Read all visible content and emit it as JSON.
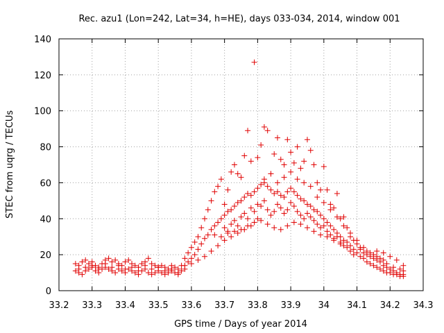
{
  "chart_data": {
    "type": "scatter",
    "title": "Rec. azu1 (Lon=242, Lat=34, h=HE), days 033-034, 2014, window 001",
    "xlabel": "GPS time / Days of year 2014",
    "ylabel": "STEC from uqrg / TECUs",
    "xlim": [
      33.2,
      34.3
    ],
    "ylim": [
      0,
      140
    ],
    "xticks": [
      33.2,
      33.3,
      33.4,
      33.5,
      33.6,
      33.7,
      33.8,
      33.9,
      34.0,
      34.1,
      34.2,
      34.3
    ],
    "xtick_labels": [
      "33.2",
      "33.3",
      "33.4",
      "33.5",
      "33.6",
      "33.7",
      "33.8",
      "33.9",
      "34",
      "34.1",
      "34.2",
      "34.3"
    ],
    "yticks": [
      0,
      20,
      40,
      60,
      80,
      100,
      120,
      140
    ],
    "ytick_labels": [
      "0",
      "20",
      "40",
      "60",
      "80",
      "100",
      "120",
      "140"
    ],
    "grid": true,
    "marker": "plus",
    "color": "#e00000",
    "series": [
      {
        "name": "STEC",
        "points": [
          [
            33.25,
            15
          ],
          [
            33.26,
            14
          ],
          [
            33.27,
            16
          ],
          [
            33.28,
            17
          ],
          [
            33.29,
            15
          ],
          [
            33.3,
            16
          ],
          [
            33.31,
            14
          ],
          [
            33.32,
            13
          ],
          [
            33.33,
            15
          ],
          [
            33.34,
            17
          ],
          [
            33.35,
            18
          ],
          [
            33.36,
            16
          ],
          [
            33.37,
            17
          ],
          [
            33.38,
            15
          ],
          [
            33.39,
            14
          ],
          [
            33.4,
            16
          ],
          [
            33.41,
            17
          ],
          [
            33.42,
            15
          ],
          [
            33.43,
            14
          ],
          [
            33.44,
            13
          ],
          [
            33.45,
            15
          ],
          [
            33.46,
            16
          ],
          [
            33.47,
            18
          ],
          [
            33.48,
            15
          ],
          [
            33.49,
            14
          ],
          [
            33.5,
            13
          ],
          [
            33.51,
            14
          ],
          [
            33.52,
            13
          ],
          [
            33.53,
            12
          ],
          [
            33.54,
            14
          ],
          [
            33.55,
            13
          ],
          [
            33.56,
            12
          ],
          [
            33.57,
            14
          ],
          [
            33.58,
            18
          ],
          [
            33.59,
            21
          ],
          [
            33.6,
            24
          ],
          [
            33.61,
            27
          ],
          [
            33.62,
            30
          ],
          [
            33.63,
            35
          ],
          [
            33.64,
            40
          ],
          [
            33.65,
            45
          ],
          [
            33.66,
            50
          ],
          [
            33.67,
            55
          ],
          [
            33.68,
            58
          ],
          [
            33.69,
            62
          ],
          [
            33.7,
            48
          ],
          [
            33.71,
            56
          ],
          [
            33.72,
            66
          ],
          [
            33.73,
            70
          ],
          [
            33.74,
            65
          ],
          [
            33.75,
            63
          ],
          [
            33.76,
            75
          ],
          [
            33.77,
            89
          ],
          [
            33.78,
            72
          ],
          [
            33.79,
            127
          ],
          [
            33.8,
            74
          ],
          [
            33.81,
            81
          ],
          [
            33.82,
            91
          ],
          [
            33.83,
            89
          ],
          [
            33.84,
            65
          ],
          [
            33.85,
            76
          ],
          [
            33.86,
            85
          ],
          [
            33.87,
            73
          ],
          [
            33.88,
            70
          ],
          [
            33.89,
            84
          ],
          [
            33.9,
            77
          ],
          [
            33.91,
            71
          ],
          [
            33.92,
            80
          ],
          [
            33.93,
            68
          ],
          [
            33.94,
            72
          ],
          [
            33.95,
            84
          ],
          [
            33.96,
            78
          ],
          [
            33.97,
            70
          ],
          [
            33.98,
            60
          ],
          [
            33.99,
            56
          ],
          [
            34.0,
            69
          ],
          [
            34.01,
            56
          ],
          [
            34.02,
            48
          ],
          [
            34.03,
            46
          ],
          [
            34.04,
            54
          ],
          [
            34.05,
            40
          ],
          [
            34.06,
            41
          ],
          [
            34.07,
            35
          ],
          [
            34.08,
            30
          ],
          [
            34.09,
            28
          ],
          [
            34.1,
            26
          ],
          [
            34.11,
            24
          ],
          [
            34.12,
            21
          ],
          [
            34.13,
            20
          ],
          [
            34.14,
            19
          ],
          [
            34.15,
            18
          ],
          [
            34.16,
            17
          ],
          [
            34.17,
            16
          ],
          [
            34.18,
            14
          ],
          [
            34.19,
            13
          ],
          [
            34.2,
            12
          ],
          [
            34.21,
            11
          ],
          [
            34.22,
            10
          ],
          [
            34.23,
            9
          ],
          [
            34.24,
            9
          ],
          [
            33.25,
            11
          ],
          [
            33.26,
            10
          ],
          [
            33.27,
            9
          ],
          [
            33.28,
            11
          ],
          [
            33.29,
            12
          ],
          [
            33.3,
            13
          ],
          [
            33.31,
            11
          ],
          [
            33.32,
            10
          ],
          [
            33.33,
            12
          ],
          [
            33.34,
            13
          ],
          [
            33.35,
            12
          ],
          [
            33.36,
            11
          ],
          [
            33.37,
            10
          ],
          [
            33.38,
            12
          ],
          [
            33.39,
            11
          ],
          [
            33.4,
            10
          ],
          [
            33.41,
            12
          ],
          [
            33.42,
            11
          ],
          [
            33.43,
            10
          ],
          [
            33.44,
            9
          ],
          [
            33.45,
            11
          ],
          [
            33.46,
            12
          ],
          [
            33.47,
            10
          ],
          [
            33.48,
            9
          ],
          [
            33.49,
            10
          ],
          [
            33.5,
            11
          ],
          [
            33.51,
            10
          ],
          [
            33.52,
            9
          ],
          [
            33.53,
            10
          ],
          [
            33.54,
            11
          ],
          [
            33.55,
            10
          ],
          [
            33.56,
            9
          ],
          [
            33.57,
            11
          ],
          [
            33.58,
            14
          ],
          [
            33.59,
            16
          ],
          [
            33.6,
            18
          ],
          [
            33.61,
            20
          ],
          [
            33.62,
            23
          ],
          [
            33.63,
            26
          ],
          [
            33.64,
            29
          ],
          [
            33.65,
            31
          ],
          [
            33.66,
            34
          ],
          [
            33.67,
            36
          ],
          [
            33.68,
            38
          ],
          [
            33.69,
            40
          ],
          [
            33.7,
            42
          ],
          [
            33.71,
            44
          ],
          [
            33.72,
            45
          ],
          [
            33.73,
            47
          ],
          [
            33.74,
            49
          ],
          [
            33.75,
            50
          ],
          [
            33.76,
            52
          ],
          [
            33.77,
            54
          ],
          [
            33.78,
            53
          ],
          [
            33.79,
            55
          ],
          [
            33.8,
            57
          ],
          [
            33.81,
            59
          ],
          [
            33.82,
            60
          ],
          [
            33.83,
            58
          ],
          [
            33.84,
            56
          ],
          [
            33.85,
            54
          ],
          [
            33.86,
            55
          ],
          [
            33.87,
            53
          ],
          [
            33.88,
            52
          ],
          [
            33.89,
            55
          ],
          [
            33.9,
            57
          ],
          [
            33.91,
            55
          ],
          [
            33.92,
            53
          ],
          [
            33.93,
            51
          ],
          [
            33.94,
            50
          ],
          [
            33.95,
            48
          ],
          [
            33.96,
            47
          ],
          [
            33.97,
            45
          ],
          [
            33.98,
            44
          ],
          [
            33.99,
            42
          ],
          [
            34.0,
            40
          ],
          [
            34.01,
            38
          ],
          [
            34.02,
            36
          ],
          [
            34.03,
            34
          ],
          [
            34.04,
            32
          ],
          [
            34.05,
            30
          ],
          [
            34.06,
            28
          ],
          [
            34.07,
            27
          ],
          [
            34.08,
            25
          ],
          [
            34.09,
            23
          ],
          [
            34.1,
            21
          ],
          [
            34.11,
            19
          ],
          [
            34.12,
            18
          ],
          [
            34.13,
            16
          ],
          [
            34.14,
            15
          ],
          [
            34.15,
            14
          ],
          [
            34.16,
            13
          ],
          [
            34.17,
            12
          ],
          [
            34.18,
            11
          ],
          [
            34.19,
            10
          ],
          [
            34.2,
            10
          ],
          [
            34.21,
            9
          ],
          [
            34.22,
            9
          ],
          [
            34.23,
            8
          ],
          [
            34.24,
            8
          ],
          [
            33.7,
            35
          ],
          [
            33.71,
            33
          ],
          [
            33.72,
            37
          ],
          [
            33.73,
            39
          ],
          [
            33.74,
            36
          ],
          [
            33.75,
            41
          ],
          [
            33.76,
            43
          ],
          [
            33.77,
            40
          ],
          [
            33.78,
            46
          ],
          [
            33.79,
            44
          ],
          [
            33.8,
            48
          ],
          [
            33.81,
            47
          ],
          [
            33.82,
            50
          ],
          [
            33.83,
            45
          ],
          [
            33.84,
            42
          ],
          [
            33.85,
            44
          ],
          [
            33.86,
            48
          ],
          [
            33.87,
            46
          ],
          [
            33.88,
            43
          ],
          [
            33.89,
            45
          ],
          [
            33.9,
            49
          ],
          [
            33.91,
            47
          ],
          [
            33.92,
            44
          ],
          [
            33.93,
            42
          ],
          [
            33.94,
            40
          ],
          [
            33.95,
            43
          ],
          [
            33.96,
            41
          ],
          [
            33.97,
            39
          ],
          [
            33.98,
            37
          ],
          [
            33.99,
            35
          ],
          [
            34.0,
            36
          ],
          [
            34.01,
            33
          ],
          [
            34.02,
            31
          ],
          [
            34.03,
            29
          ],
          [
            34.04,
            30
          ],
          [
            34.05,
            27
          ],
          [
            34.06,
            25
          ],
          [
            34.07,
            24
          ],
          [
            34.08,
            22
          ],
          [
            34.09,
            20
          ],
          [
            33.67,
            31
          ],
          [
            33.69,
            30
          ],
          [
            33.71,
            32
          ],
          [
            33.73,
            33
          ],
          [
            33.75,
            34
          ],
          [
            33.77,
            36
          ],
          [
            33.79,
            38
          ],
          [
            33.81,
            39
          ],
          [
            33.83,
            37
          ],
          [
            33.85,
            35
          ],
          [
            33.87,
            34
          ],
          [
            33.89,
            36
          ],
          [
            33.91,
            38
          ],
          [
            33.93,
            37
          ],
          [
            33.95,
            35
          ],
          [
            33.97,
            33
          ],
          [
            33.99,
            31
          ],
          [
            34.01,
            30
          ],
          [
            34.03,
            28
          ],
          [
            34.05,
            26
          ],
          [
            33.6,
            15
          ],
          [
            33.62,
            17
          ],
          [
            33.64,
            19
          ],
          [
            33.66,
            22
          ],
          [
            33.68,
            25
          ],
          [
            33.7,
            28
          ],
          [
            33.72,
            30
          ],
          [
            33.74,
            32
          ],
          [
            33.76,
            34
          ],
          [
            33.78,
            36
          ],
          [
            33.8,
            40
          ],
          [
            33.82,
            62
          ],
          [
            33.84,
            65
          ],
          [
            33.86,
            60
          ],
          [
            33.88,
            63
          ],
          [
            33.9,
            66
          ],
          [
            33.92,
            62
          ],
          [
            33.94,
            60
          ],
          [
            33.96,
            58
          ],
          [
            33.98,
            52
          ],
          [
            34.0,
            49
          ],
          [
            34.02,
            45
          ],
          [
            34.04,
            41
          ],
          [
            34.06,
            36
          ],
          [
            34.08,
            32
          ],
          [
            34.1,
            28
          ],
          [
            34.12,
            24
          ],
          [
            34.14,
            21
          ],
          [
            34.16,
            19
          ],
          [
            34.18,
            17
          ],
          [
            33.26,
            12
          ],
          [
            33.28,
            13
          ],
          [
            33.3,
            14
          ],
          [
            33.32,
            12
          ],
          [
            33.34,
            15
          ],
          [
            33.36,
            13
          ],
          [
            33.38,
            14
          ],
          [
            33.4,
            12
          ],
          [
            33.42,
            13
          ],
          [
            33.44,
            11
          ],
          [
            33.46,
            14
          ],
          [
            33.48,
            12
          ],
          [
            33.5,
            13
          ],
          [
            33.52,
            11
          ],
          [
            33.54,
            12
          ],
          [
            33.56,
            10
          ],
          [
            33.58,
            12
          ],
          [
            34.16,
            22
          ],
          [
            34.18,
            21
          ],
          [
            34.2,
            19
          ],
          [
            34.22,
            17
          ],
          [
            34.24,
            14
          ],
          [
            34.24,
            11
          ],
          [
            34.23,
            12
          ],
          [
            34.21,
            13
          ],
          [
            34.19,
            15
          ],
          [
            34.17,
            18
          ],
          [
            34.15,
            20
          ],
          [
            34.13,
            22
          ],
          [
            34.11,
            23
          ]
        ]
      }
    ]
  }
}
